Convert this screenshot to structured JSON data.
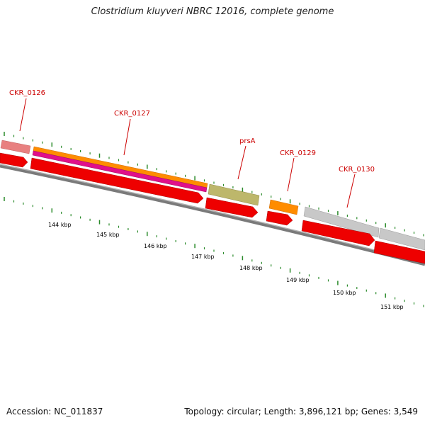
{
  "title": "Clostridium kluyveri NBRC 12016, complete genome",
  "footer": {
    "accession": "Accession: NC_011837",
    "summary": "Topology: circular; Length: 3,896,121 bp; Genes: 3,549"
  },
  "gene_labels": [
    "CKR_0126",
    "CKR_0127",
    "prsA",
    "CKR_0129",
    "CKR_0130"
  ],
  "scale_labels": [
    "144 kbp",
    "145 kbp",
    "146 kbp",
    "147 kbp",
    "148 kbp",
    "149 kbp",
    "150 kbp",
    "151 kbp"
  ],
  "colors": {
    "label_red": "#cc0000",
    "cds_red": "#ee0000",
    "backbone_gray": "#808080",
    "tick_green": "#2a8a2a",
    "pink": "#e88080",
    "orange": "#ff8c00",
    "magenta": "#e0108a",
    "olive": "#bdb76b",
    "light_gray": "#c8c8c8"
  }
}
